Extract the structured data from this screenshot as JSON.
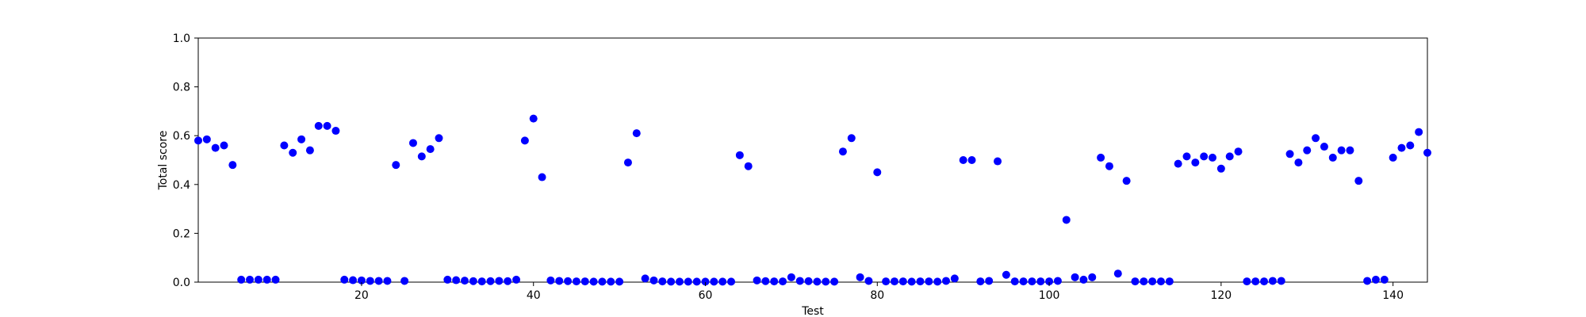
{
  "chart_data": {
    "type": "scatter",
    "xlabel": "Test",
    "ylabel": "Total score",
    "xlim": [
      1,
      144
    ],
    "ylim": [
      0,
      1.0
    ],
    "xticks": [
      20,
      40,
      60,
      80,
      100,
      120,
      140
    ],
    "yticks": [
      0.0,
      0.2,
      0.4,
      0.6,
      0.8,
      1.0
    ],
    "xtick_labels": [
      "20",
      "40",
      "60",
      "80",
      "100",
      "120",
      "140"
    ],
    "ytick_labels": [
      "0.0",
      "0.2",
      "0.4",
      "0.6",
      "0.8",
      "1.0"
    ],
    "grid": false,
    "marker_color": "#0000ff",
    "series": [
      {
        "x": [
          1,
          2,
          3,
          4,
          5,
          6,
          7,
          8,
          9,
          10,
          11,
          12,
          13,
          14,
          15,
          16,
          17,
          18,
          19,
          20,
          21,
          22,
          23,
          24,
          25,
          26,
          27,
          28,
          29,
          30,
          31,
          32,
          33,
          34,
          35,
          36,
          37,
          38,
          39,
          40,
          41,
          42,
          43,
          44,
          45,
          46,
          47,
          48,
          49,
          50,
          51,
          52,
          53,
          54,
          55,
          56,
          57,
          58,
          59,
          60,
          61,
          62,
          63,
          64,
          65,
          66,
          67,
          68,
          69,
          70,
          71,
          72,
          73,
          74,
          75,
          76,
          77,
          78,
          79,
          80,
          81,
          82,
          83,
          84,
          85,
          86,
          87,
          88,
          89,
          90,
          91,
          92,
          93,
          94,
          95,
          96,
          97,
          98,
          99,
          100,
          101,
          102,
          103,
          104,
          105,
          106,
          107,
          108,
          109,
          110,
          111,
          112,
          113,
          114,
          115,
          116,
          117,
          118,
          119,
          120,
          121,
          122,
          123,
          124,
          125,
          126,
          127,
          128,
          129,
          130,
          131,
          132,
          133,
          134,
          135,
          136,
          137,
          138,
          139,
          140,
          141,
          142,
          143,
          144
        ],
        "y": [
          0.58,
          0.585,
          0.55,
          0.56,
          0.48,
          0.01,
          0.01,
          0.01,
          0.01,
          0.01,
          0.56,
          0.53,
          0.585,
          0.54,
          0.64,
          0.64,
          0.62,
          0.01,
          0.008,
          0.007,
          0.005,
          0.005,
          0.005,
          0.48,
          0.005,
          0.57,
          0.515,
          0.545,
          0.59,
          0.01,
          0.008,
          0.006,
          0.004,
          0.003,
          0.004,
          0.005,
          0.004,
          0.01,
          0.58,
          0.67,
          0.43,
          0.007,
          0.005,
          0.004,
          0.003,
          0.003,
          0.002,
          0.002,
          0.002,
          0.002,
          0.49,
          0.61,
          0.015,
          0.007,
          0.003,
          0.002,
          0.002,
          0.002,
          0.002,
          0.002,
          0.002,
          0.002,
          0.002,
          0.52,
          0.475,
          0.007,
          0.004,
          0.003,
          0.003,
          0.02,
          0.005,
          0.004,
          0.002,
          0.002,
          0.002,
          0.535,
          0.59,
          0.02,
          0.005,
          0.45,
          0.003,
          0.003,
          0.003,
          0.002,
          0.003,
          0.003,
          0.002,
          0.005,
          0.015,
          0.5,
          0.5,
          0.003,
          0.005,
          0.495,
          0.03,
          0.003,
          0.003,
          0.003,
          0.003,
          0.003,
          0.005,
          0.255,
          0.02,
          0.01,
          0.02,
          0.51,
          0.475,
          0.035,
          0.415,
          0.003,
          0.003,
          0.003,
          0.003,
          0.003,
          0.485,
          0.515,
          0.49,
          0.515,
          0.51,
          0.465,
          0.515,
          0.535,
          0.003,
          0.003,
          0.003,
          0.005,
          0.005,
          0.525,
          0.49,
          0.54,
          0.59,
          0.555,
          0.51,
          0.54,
          0.54,
          0.415,
          0.005,
          0.01,
          0.01,
          0.51,
          0.55,
          0.56,
          0.615,
          0.53
        ]
      }
    ]
  }
}
